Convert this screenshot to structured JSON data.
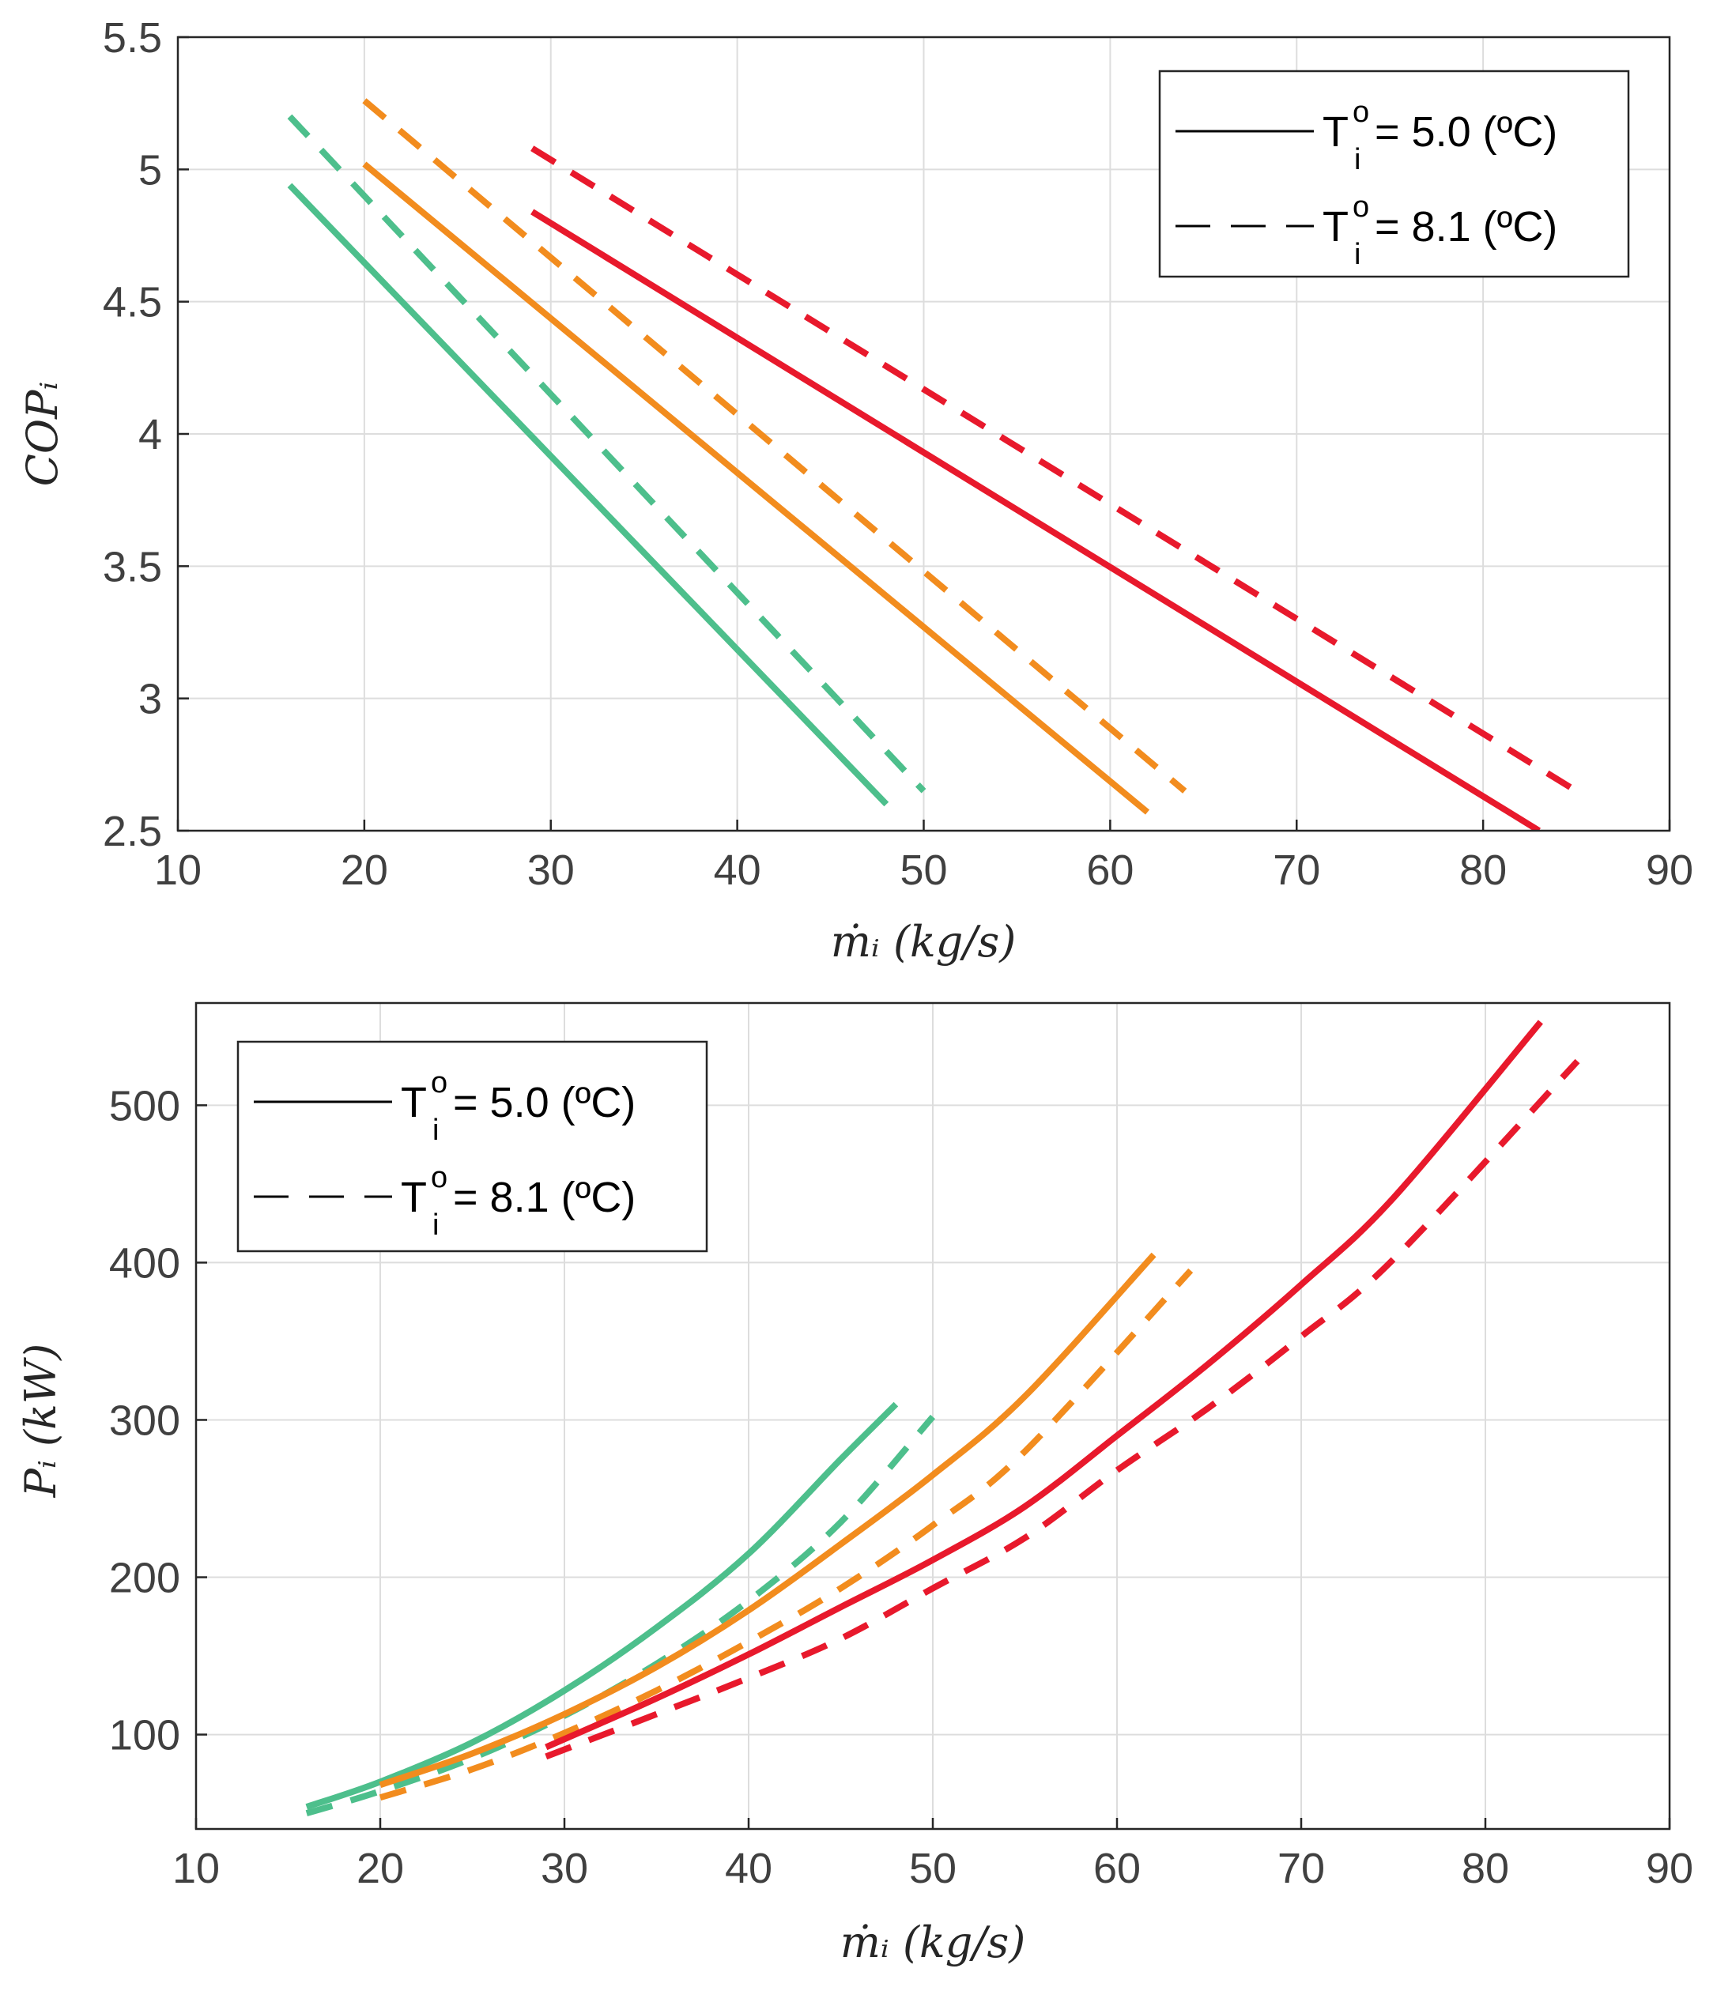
{
  "chart_data": [
    {
      "type": "line",
      "xlabel": "ṁᵢ (kg/s)",
      "ylabel": "COPᵢ",
      "xlim": [
        10,
        90
      ],
      "ylim": [
        2.5,
        5.5
      ],
      "xticks": [
        "10",
        "20",
        "30",
        "40",
        "50",
        "60",
        "70",
        "80",
        "90"
      ],
      "yticks": [
        "2.5",
        "3",
        "3.5",
        "4",
        "4.5",
        "5",
        "5.5"
      ],
      "grid": true,
      "legend_position": "top-right",
      "legend": [
        {
          "label_prefix": "T",
          "sup": "o",
          "sub": "i",
          "label_suffix": " = 5.0 (ºC)",
          "style": "solid"
        },
        {
          "label_prefix": "T",
          "sup": "o",
          "sub": "i",
          "label_suffix": " = 8.1 (ºC)",
          "style": "dashed"
        }
      ],
      "series": [
        {
          "name": "green solid",
          "color": "#4dbf8c",
          "style": "solid",
          "x": [
            16,
            48
          ],
          "y": [
            4.94,
            2.6
          ]
        },
        {
          "name": "green dashed",
          "color": "#4dbf8c",
          "style": "dashed",
          "x": [
            16,
            50
          ],
          "y": [
            5.2,
            2.65
          ]
        },
        {
          "name": "orange solid",
          "color": "#f28c1e",
          "style": "solid",
          "x": [
            20,
            62
          ],
          "y": [
            5.02,
            2.57
          ]
        },
        {
          "name": "orange dashed",
          "color": "#f28c1e",
          "style": "dashed",
          "x": [
            20,
            64
          ],
          "y": [
            5.26,
            2.65
          ]
        },
        {
          "name": "red solid",
          "color": "#e8192c",
          "style": "solid",
          "x": [
            29,
            83
          ],
          "y": [
            4.84,
            2.5
          ]
        },
        {
          "name": "red dashed",
          "color": "#e8192c",
          "style": "dashed",
          "x": [
            29,
            85
          ],
          "y": [
            5.08,
            2.65
          ]
        }
      ]
    },
    {
      "type": "line",
      "xlabel": "ṁᵢ (kg/s)",
      "ylabel": "Pᵢ (kW)",
      "xlim": [
        10,
        90
      ],
      "ylim": [
        40,
        565
      ],
      "xticks": [
        "10",
        "20",
        "30",
        "40",
        "50",
        "60",
        "70",
        "80",
        "90"
      ],
      "yticks": [
        "100",
        "200",
        "300",
        "400",
        "500"
      ],
      "ytick_values": [
        100,
        200,
        300,
        400,
        500
      ],
      "grid": true,
      "legend_position": "top-left",
      "legend": [
        {
          "label_prefix": "T",
          "sup": "o",
          "sub": "i",
          "label_suffix": " = 5.0 (ºC)",
          "style": "solid"
        },
        {
          "label_prefix": "T",
          "sup": "o",
          "sub": "i",
          "label_suffix": " = 8.1 (ºC)",
          "style": "dashed"
        }
      ],
      "series": [
        {
          "name": "green solid",
          "color": "#4dbf8c",
          "style": "solid",
          "x": [
            16,
            20,
            25,
            30,
            35,
            40,
            45,
            48
          ],
          "y": [
            54,
            70,
            95,
            128,
            168,
            215,
            275,
            310
          ]
        },
        {
          "name": "green dashed",
          "color": "#4dbf8c",
          "style": "dashed",
          "x": [
            16,
            20,
            25,
            30,
            35,
            40,
            45,
            50
          ],
          "y": [
            50,
            64,
            85,
            112,
            145,
            185,
            235,
            302
          ]
        },
        {
          "name": "orange solid",
          "color": "#f28c1e",
          "style": "solid",
          "x": [
            20,
            25,
            30,
            35,
            40,
            45,
            50,
            55,
            62
          ],
          "y": [
            68,
            88,
            113,
            143,
            179,
            221,
            265,
            315,
            405
          ]
        },
        {
          "name": "orange dashed",
          "color": "#f28c1e",
          "style": "dashed",
          "x": [
            20,
            25,
            30,
            35,
            40,
            45,
            50,
            55,
            64
          ],
          "y": [
            60,
            78,
            101,
            128,
            159,
            193,
            233,
            280,
            395
          ]
        },
        {
          "name": "red solid",
          "color": "#e8192c",
          "style": "solid",
          "x": [
            29,
            35,
            40,
            45,
            50,
            55,
            60,
            65,
            70,
            75,
            83
          ],
          "y": [
            92,
            123,
            151,
            181,
            211,
            245,
            290,
            336,
            386,
            441,
            553
          ]
        },
        {
          "name": "red dashed",
          "color": "#e8192c",
          "style": "dashed",
          "x": [
            29,
            35,
            40,
            45,
            50,
            55,
            60,
            65,
            70,
            75,
            85
          ],
          "y": [
            86,
            113,
            136,
            161,
            193,
            225,
            268,
            308,
            353,
            402,
            528
          ]
        }
      ]
    }
  ]
}
